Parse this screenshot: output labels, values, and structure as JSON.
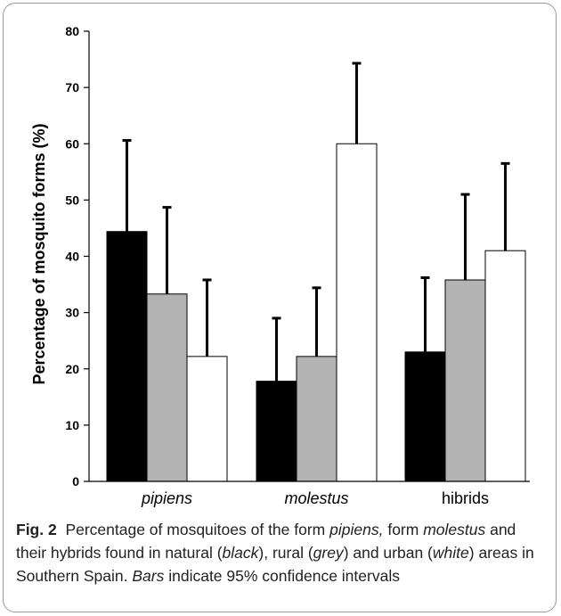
{
  "chart_data": {
    "type": "bar",
    "categories": [
      "pipiens",
      "molestus",
      "hibrids"
    ],
    "category_italic": [
      true,
      true,
      false
    ],
    "ylabel": "Percentage of mosquito forms (%)",
    "ylim": [
      0,
      80
    ],
    "yticks": [
      0,
      10,
      20,
      30,
      40,
      50,
      60,
      70,
      80
    ],
    "series": [
      {
        "values": [
          44.4,
          17.8,
          23.0
        ],
        "errors_upper": [
          60.6,
          29.0,
          36.2
        ],
        "color": "#000000"
      },
      {
        "values": [
          33.3,
          22.2,
          35.8
        ],
        "errors_upper": [
          48.7,
          34.4,
          51.0
        ],
        "color": "#b3b3b3"
      },
      {
        "values": [
          22.2,
          60.0,
          41.0
        ],
        "errors_upper": [
          35.8,
          74.3,
          56.5
        ],
        "color": "#ffffff"
      }
    ],
    "grid": false
  },
  "caption": {
    "label": "Fig. 2",
    "t1": "Percentage of mosquitoes of the form ",
    "i1": "pipiens,",
    "t2": " form ",
    "i2": "molestus",
    "t3": " and their hybrids found in natural (",
    "i3": "black",
    "t4": "), rural (",
    "i4": "grey",
    "t5": ") and urban (",
    "i5": "white",
    "t6": ") areas in Southern Spain. ",
    "i6": "Bars",
    "t7": " indicate 95% confidence intervals"
  }
}
